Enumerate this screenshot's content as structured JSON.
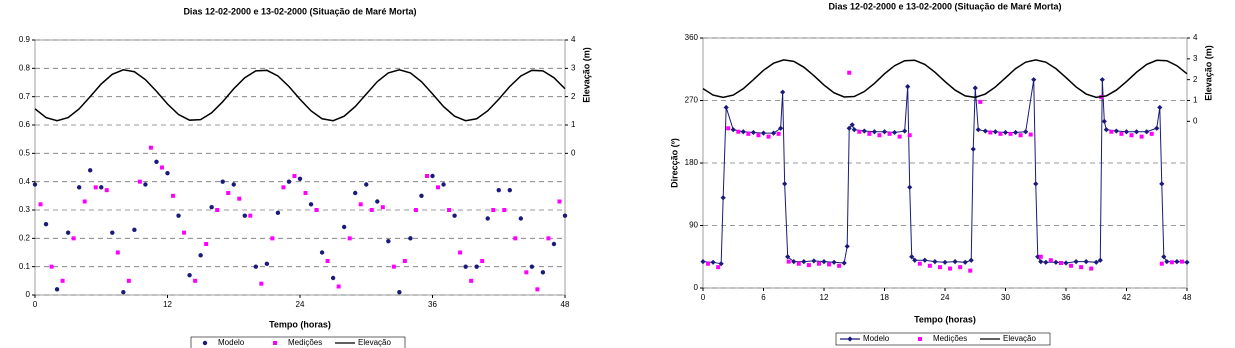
{
  "chart_data": [
    {
      "type": "line",
      "title": "Dias 12-02-2000 e 13-02-2000 (Situação de Maré Morta)",
      "x_label": "Tempo (horas)",
      "y2_label": "Elevação (m)",
      "xlim": [
        0,
        48
      ],
      "xticks": [
        0,
        12,
        24,
        36,
        48
      ],
      "ylim": [
        0,
        0.9
      ],
      "yticks": [
        0,
        0.1,
        0.2,
        0.3,
        0.4,
        0.5,
        0.6,
        0.7,
        0.8,
        0.9
      ],
      "y2lim": [
        -5,
        4
      ],
      "y2ticks": [
        0,
        1,
        2,
        3,
        4
      ],
      "grid": true,
      "legend": "bottom",
      "series": [
        {
          "name": "Modelo",
          "color": "#1a1a7a",
          "marker": "circle",
          "line": false,
          "x": [
            0,
            1,
            2,
            3,
            4,
            5,
            6,
            7,
            8,
            9,
            10,
            11,
            12,
            13,
            14,
            15,
            16,
            17,
            18,
            19,
            20,
            21,
            22,
            23,
            24,
            25,
            26,
            27,
            28,
            29,
            30,
            31,
            32,
            33,
            34,
            35,
            36,
            37,
            38,
            39,
            40,
            41,
            42,
            43,
            44,
            45,
            46,
            47,
            48
          ],
          "values": [
            0.39,
            0.25,
            0.02,
            0.22,
            0.38,
            0.44,
            0.38,
            0.22,
            0.01,
            0.23,
            0.39,
            0.47,
            0.43,
            0.28,
            0.07,
            0.14,
            0.31,
            0.4,
            0.39,
            0.28,
            0.1,
            0.11,
            0.29,
            0.4,
            0.41,
            0.32,
            0.15,
            0.06,
            0.24,
            0.36,
            0.39,
            0.33,
            0.19,
            0.01,
            0.2,
            0.35,
            0.42,
            0.39,
            0.28,
            0.1,
            0.1,
            0.27,
            0.37,
            0.37,
            0.27,
            0.1,
            0.08,
            0.18,
            0.28
          ]
        },
        {
          "name": "Medições",
          "color": "#ff00ff",
          "marker": "square",
          "line": false,
          "x": [
            0.5,
            1.5,
            2.5,
            3.5,
            4.5,
            5.5,
            6.5,
            7.5,
            8.5,
            9.5,
            10.5,
            11.5,
            12.5,
            13.5,
            14.5,
            15.5,
            16.5,
            17.5,
            18.5,
            19.5,
            20.5,
            21.5,
            22.5,
            23.5,
            24.5,
            25.5,
            26.5,
            27.5,
            28.5,
            29.5,
            30.5,
            31.5,
            32.5,
            33.5,
            34.5,
            35.5,
            36.5,
            37.5,
            38.5,
            39.5,
            40.5,
            41.5,
            42.5,
            43.5,
            44.5,
            45.5,
            46.5,
            47.5
          ],
          "values": [
            0.32,
            0.1,
            0.05,
            0.2,
            0.33,
            0.38,
            0.37,
            0.15,
            0.05,
            0.4,
            0.52,
            0.45,
            0.35,
            0.22,
            0.05,
            0.18,
            0.3,
            0.36,
            0.34,
            0.28,
            0.04,
            0.2,
            0.38,
            0.42,
            0.36,
            0.3,
            0.12,
            0.03,
            0.2,
            0.32,
            0.3,
            0.31,
            0.1,
            0.12,
            0.3,
            0.42,
            0.38,
            0.3,
            0.15,
            0.05,
            0.12,
            0.3,
            0.3,
            0.2,
            0.08,
            0.02,
            0.2,
            0.33
          ]
        },
        {
          "name": "Elevação",
          "color": "#000000",
          "marker": "none",
          "line": true,
          "axis": "y2",
          "x": [
            0,
            1,
            2,
            3,
            4,
            5,
            6,
            7,
            8,
            9,
            10,
            11,
            12,
            13,
            14,
            15,
            16,
            17,
            18,
            19,
            20,
            21,
            22,
            23,
            24,
            25,
            26,
            27,
            28,
            29,
            30,
            31,
            32,
            33,
            34,
            35,
            36,
            37,
            38,
            39,
            40,
            41,
            42,
            43,
            44,
            45,
            46,
            47,
            48
          ],
          "values": [
            1.57,
            1.26,
            1.15,
            1.26,
            1.57,
            2.0,
            2.45,
            2.79,
            2.95,
            2.88,
            2.6,
            2.19,
            1.74,
            1.37,
            1.17,
            1.19,
            1.43,
            1.82,
            2.28,
            2.67,
            2.91,
            2.93,
            2.73,
            2.36,
            1.91,
            1.5,
            1.22,
            1.15,
            1.31,
            1.65,
            2.09,
            2.53,
            2.84,
            2.95,
            2.84,
            2.53,
            2.1,
            1.65,
            1.31,
            1.15,
            1.22,
            1.5,
            1.91,
            2.36,
            2.73,
            2.93,
            2.91,
            2.67,
            2.28
          ]
        }
      ]
    },
    {
      "type": "line",
      "title": "Dias 12-02-2000 e 13-02-2000 (Situação de Maré Morta)",
      "x_label": "Tempo (horas)",
      "y_label": "Direcção (º)",
      "y2_label": "Elevação (m)",
      "xlim": [
        0,
        48
      ],
      "xticks": [
        0,
        6,
        12,
        18,
        24,
        30,
        36,
        42,
        48
      ],
      "ylim": [
        0,
        360
      ],
      "yticks": [
        0,
        90,
        180,
        270,
        360
      ],
      "y2lim": [
        -8,
        4
      ],
      "y2ticks": [
        0,
        1,
        2,
        3,
        4
      ],
      "grid": true,
      "legend": "bottom",
      "series": [
        {
          "name": "Modelo",
          "color": "#1a1a7a",
          "marker": "diamond",
          "line": true,
          "x": [
            0,
            1,
            1.8,
            2,
            2.3,
            3,
            4,
            5,
            6,
            7,
            7.7,
            7.9,
            8.1,
            8.4,
            9,
            10,
            11,
            12,
            13,
            14,
            14.3,
            14.5,
            14.8,
            15,
            16,
            17,
            18,
            19,
            20,
            20.3,
            20.5,
            20.7,
            21,
            22,
            23,
            24,
            25,
            26,
            26.6,
            26.8,
            27,
            27.3,
            28,
            29,
            30,
            31,
            32,
            32.8,
            33,
            33.2,
            33.5,
            34,
            35,
            36,
            37,
            38,
            39,
            39.4,
            39.6,
            39.8,
            40,
            41,
            42,
            43,
            44,
            45,
            45.3,
            45.5,
            45.7,
            46,
            47,
            48
          ],
          "values": [
            38,
            37,
            35,
            130,
            260,
            228,
            225,
            224,
            223,
            223,
            230,
            282,
            150,
            45,
            38,
            38,
            39,
            38,
            37,
            36,
            60,
            230,
            235,
            228,
            226,
            225,
            225,
            224,
            226,
            290,
            145,
            45,
            40,
            40,
            38,
            37,
            38,
            37,
            40,
            200,
            288,
            228,
            226,
            225,
            224,
            224,
            225,
            300,
            150,
            45,
            38,
            37,
            37,
            36,
            38,
            38,
            37,
            40,
            300,
            240,
            228,
            226,
            225,
            225,
            225,
            230,
            260,
            150,
            45,
            38,
            38,
            37
          ]
        },
        {
          "name": "Medições",
          "color": "#ff00ff",
          "marker": "square",
          "line": false,
          "x": [
            0.5,
            1.5,
            2.5,
            3.5,
            4.5,
            5.5,
            6.5,
            7.5,
            8.5,
            9.5,
            10.5,
            11.5,
            12.5,
            13.5,
            14.5,
            15.5,
            16.5,
            17.5,
            18.5,
            19.5,
            20.5,
            21.5,
            22.5,
            23.5,
            24.5,
            25.5,
            26.5,
            27.5,
            28.5,
            29.5,
            30.5,
            31.5,
            32.5,
            33.5,
            34.5,
            35.5,
            36.5,
            37.5,
            38.5,
            39.5,
            40.5,
            41.5,
            42.5,
            43.5,
            44.5,
            45.5,
            46.5,
            47.5
          ],
          "values": [
            35,
            30,
            230,
            225,
            222,
            220,
            218,
            222,
            38,
            35,
            33,
            35,
            34,
            32,
            310,
            225,
            222,
            220,
            222,
            218,
            220,
            35,
            32,
            30,
            28,
            30,
            25,
            268,
            224,
            222,
            222,
            220,
            221,
            45,
            40,
            36,
            32,
            30,
            28,
            275,
            225,
            222,
            220,
            218,
            222,
            35,
            37,
            38
          ]
        },
        {
          "name": "Elevação",
          "color": "#000000",
          "marker": "none",
          "line": true,
          "axis": "y2",
          "x": [
            0,
            1,
            2,
            3,
            4,
            5,
            6,
            7,
            8,
            9,
            10,
            11,
            12,
            13,
            14,
            15,
            16,
            17,
            18,
            19,
            20,
            21,
            22,
            23,
            24,
            25,
            26,
            27,
            28,
            29,
            30,
            31,
            32,
            33,
            34,
            35,
            36,
            37,
            38,
            39,
            40,
            41,
            42,
            43,
            44,
            45,
            46,
            47,
            48
          ],
          "values": [
            1.57,
            1.26,
            1.15,
            1.26,
            1.57,
            2.0,
            2.45,
            2.79,
            2.95,
            2.88,
            2.6,
            2.19,
            1.74,
            1.37,
            1.17,
            1.19,
            1.43,
            1.82,
            2.28,
            2.67,
            2.91,
            2.93,
            2.73,
            2.36,
            1.91,
            1.5,
            1.22,
            1.15,
            1.31,
            1.65,
            2.09,
            2.53,
            2.84,
            2.95,
            2.84,
            2.53,
            2.1,
            1.65,
            1.31,
            1.15,
            1.22,
            1.5,
            1.91,
            2.36,
            2.73,
            2.93,
            2.91,
            2.67,
            2.28
          ]
        }
      ]
    }
  ]
}
